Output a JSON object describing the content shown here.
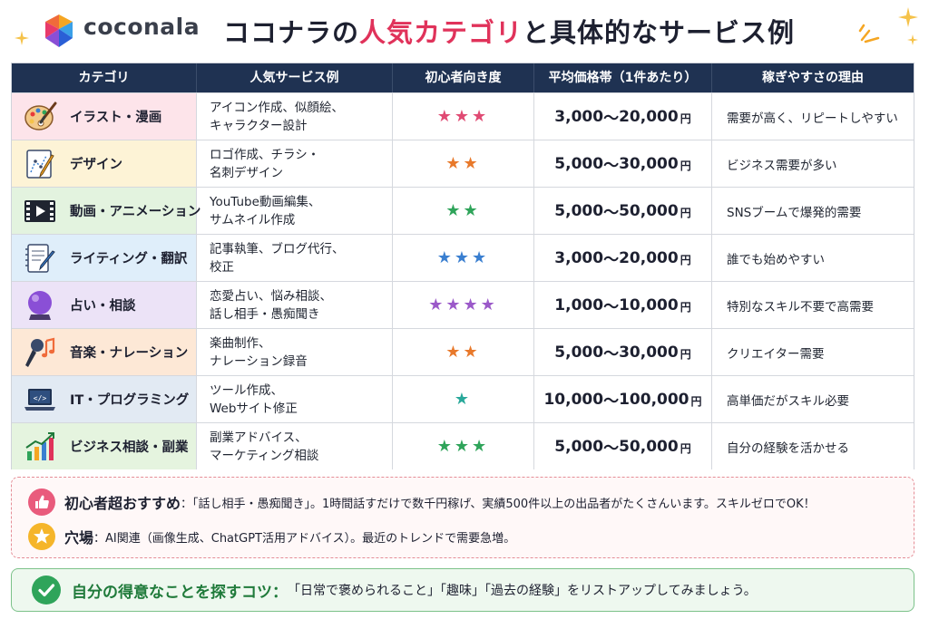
{
  "header": {
    "brand": "coconala",
    "title_pre": "ココナラの",
    "title_highlight": "人気カテゴリ",
    "title_post": "と具体的なサービス例"
  },
  "table": {
    "columns": [
      "カテゴリ",
      "人気サービス例",
      "初心者向き度",
      "平均価格帯（1件あたり）",
      "稼ぎやすさの理由"
    ],
    "rows": [
      {
        "category": "イラスト・漫画",
        "icon": "palette-brush-icon",
        "bg": "#fde4ea",
        "services": [
          "アイコン作成、似顔絵、",
          "キャラクター設計"
        ],
        "stars": "★★★",
        "star_color": "#e04a73",
        "price_min": "3,000",
        "price_sep": "〜",
        "price_max": "20,000",
        "yen": "円",
        "reason": "需要が高く、リピートしやすい"
      },
      {
        "category": "デザイン",
        "icon": "design-pen-icon",
        "bg": "#fdf3d6",
        "services": [
          "ロゴ作成、チラシ・",
          "名刺デザイン"
        ],
        "stars": "★★",
        "star_color": "#e8792b",
        "price_min": "5,000",
        "price_sep": "〜",
        "price_max": "30,000",
        "yen": "円",
        "reason": "ビジネス需要が多い"
      },
      {
        "category": "動画・アニメーション",
        "icon": "video-player-icon",
        "bg": "#e3f3df",
        "services": [
          "YouTube動画編集、",
          "サムネイル作成"
        ],
        "stars": "★★",
        "star_color": "#2fa45a",
        "price_min": "5,000",
        "price_sep": "〜",
        "price_max": "50,000",
        "yen": "円",
        "reason": "SNSブームで爆発的需要"
      },
      {
        "category": "ライティング・翻訳",
        "icon": "writing-notepad-icon",
        "bg": "#dfeefa",
        "services": [
          "記事執筆、ブログ代行、",
          "校正"
        ],
        "stars": "★★★",
        "star_color": "#3a7fd0",
        "price_min": "3,000",
        "price_sep": "〜",
        "price_max": "20,000",
        "yen": "円",
        "reason": "誰でも始めやすい"
      },
      {
        "category": "占い・相談",
        "icon": "crystal-ball-icon",
        "bg": "#ece3f7",
        "services": [
          "恋愛占い、悩み相談、",
          "話し相手・愚痴聞き"
        ],
        "stars": "★★★★",
        "star_color": "#9b59c9",
        "price_min": "1,000",
        "price_sep": "〜",
        "price_max": "10,000",
        "yen": "円",
        "reason": "特別なスキル不要で高需要"
      },
      {
        "category": "音楽・ナレーション",
        "icon": "microphone-music-icon",
        "bg": "#fde8d6",
        "services": [
          "楽曲制作、",
          "ナレーション録音"
        ],
        "stars": "★★",
        "star_color": "#e8792b",
        "price_min": "5,000",
        "price_sep": "〜",
        "price_max": "30,000",
        "yen": "円",
        "reason": "クリエイター需要"
      },
      {
        "category": "IT・プログラミング",
        "icon": "laptop-code-icon",
        "bg": "#e2eaf3",
        "services": [
          "ツール作成、",
          "Webサイト修正"
        ],
        "stars": "★",
        "star_color": "#28a89a",
        "price_min": "10,000",
        "price_sep": "〜",
        "price_max": "100,000",
        "yen": "円",
        "reason": "高単価だがスキル必要"
      },
      {
        "category": "ビジネス相談・副業",
        "icon": "growth-chart-icon",
        "bg": "#e5f4df",
        "services": [
          "副業アドバイス、",
          "マーケティング相談"
        ],
        "stars": "★★★",
        "star_color": "#2fa45a",
        "price_min": "5,000",
        "price_sep": "〜",
        "price_max": "50,000",
        "yen": "円",
        "reason": "自分の経験を活かせる"
      }
    ]
  },
  "tips": {
    "beginner_label": "初心者超おすすめ",
    "beginner_text": "：「話し相手・愚痴聞き」。1時間話すだけで数千円稼げ、実績500件以上の出品者がたくさんいます。スキルゼロでOK！",
    "niche_label": "穴場",
    "niche_text": "：AI関連（画像生成、ChatGPT活用アドバイス）。最近のトレンドで需要急増。"
  },
  "advice": {
    "label": "自分の得意なことを探すコツ：",
    "text": "「日常で褒められること」「趣味」「過去の経験」をリストアップしてみましょう。"
  },
  "colors": {
    "header_bg": "#1f3252",
    "title_highlight": "#e0325a",
    "advice_green": "#1f7a3a"
  }
}
